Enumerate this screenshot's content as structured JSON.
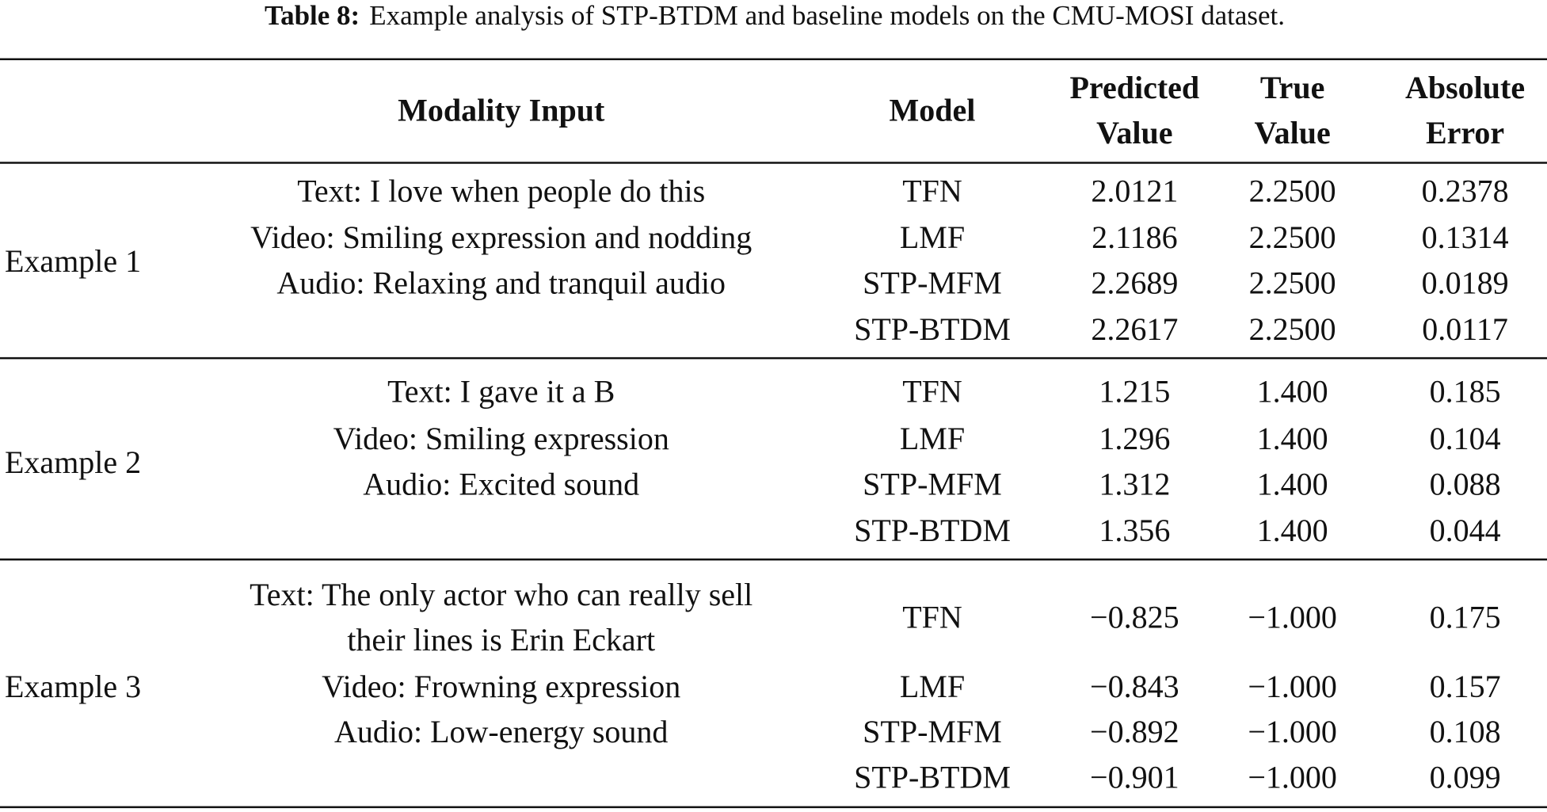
{
  "caption": {
    "label": "Table 8:",
    "text": "Example analysis of STP-BTDM and baseline models on the CMU-MOSI dataset."
  },
  "table": {
    "header": [
      [
        "Modality Input"
      ],
      [
        "Model"
      ],
      [
        "Predicted",
        "Value"
      ],
      [
        "True",
        "Value"
      ],
      [
        "Absolute",
        "Error"
      ]
    ],
    "groups": [
      {
        "label": "Example 1",
        "inputs": [
          [
            "Text: I love when people do this"
          ],
          [
            "Video: Smiling expression and nodding"
          ],
          [
            "Audio: Relaxing and tranquil audio"
          ]
        ],
        "rows": [
          [
            "TFN",
            "2.0121",
            "2.2500",
            "0.2378"
          ],
          [
            "LMF",
            "2.1186",
            "2.2500",
            "0.1314"
          ],
          [
            "STP-MFM",
            "2.2689",
            "2.2500",
            "0.0189"
          ],
          [
            "STP-BTDM",
            "2.2617",
            "2.2500",
            "0.0117"
          ]
        ]
      },
      {
        "label": "Example 2",
        "inputs": [
          [
            "Text: I gave it a B"
          ],
          [
            "Video: Smiling expression"
          ],
          [
            "Audio: Excited sound"
          ]
        ],
        "rows": [
          [
            "TFN",
            "1.215",
            "1.400",
            "0.185"
          ],
          [
            "LMF",
            "1.296",
            "1.400",
            "0.104"
          ],
          [
            "STP-MFM",
            "1.312",
            "1.400",
            "0.088"
          ],
          [
            "STP-BTDM",
            "1.356",
            "1.400",
            "0.044"
          ]
        ]
      },
      {
        "label": "Example 3",
        "inputs": [
          [
            "Text: The only actor who can really sell",
            "their lines is Erin Eckart"
          ],
          [
            "Video: Frowning expression"
          ],
          [
            "Audio: Low-energy sound"
          ]
        ],
        "rows": [
          [
            "TFN",
            "−0.825",
            "−1.000",
            "0.175"
          ],
          [
            "LMF",
            "−0.843",
            "−1.000",
            "0.157"
          ],
          [
            "STP-MFM",
            "−0.892",
            "−1.000",
            "0.108"
          ],
          [
            "STP-BTDM",
            "−0.901",
            "−1.000",
            "0.099"
          ]
        ]
      }
    ]
  }
}
